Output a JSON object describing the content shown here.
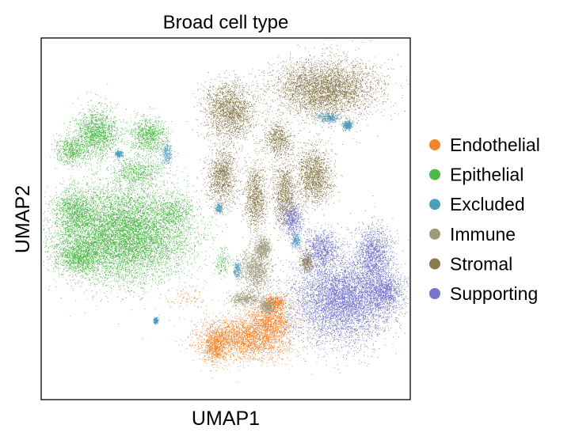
{
  "chart_data": {
    "type": "scatter",
    "title": "Broad cell type",
    "xlabel": "UMAP1",
    "ylabel": "UMAP2",
    "xlim": [
      0,
      100
    ],
    "ylim": [
      0,
      100
    ],
    "ticks": false,
    "grid": false,
    "legend_position": "right",
    "series": [
      {
        "name": "Endothelial",
        "color": "#f0852d",
        "regions": [
          {
            "cx": 55,
            "cy": 17,
            "rx": 12,
            "ry": 6,
            "density": 1.8
          },
          {
            "cx": 62,
            "cy": 22,
            "rx": 6,
            "ry": 6,
            "density": 1.5
          },
          {
            "cx": 47,
            "cy": 15,
            "rx": 3,
            "ry": 5,
            "density": 1.2
          },
          {
            "cx": 40,
            "cy": 28,
            "rx": 6,
            "ry": 3,
            "density": 0.15
          },
          {
            "cx": 63,
            "cy": 27,
            "rx": 3,
            "ry": 2,
            "density": 1.0
          }
        ]
      },
      {
        "name": "Epithelial",
        "color": "#4cb847",
        "regions": [
          {
            "cx": 22,
            "cy": 46,
            "rx": 18,
            "ry": 13,
            "density": 2.2
          },
          {
            "cx": 10,
            "cy": 40,
            "rx": 6,
            "ry": 5,
            "density": 1.4
          },
          {
            "cx": 9,
            "cy": 52,
            "rx": 5,
            "ry": 6,
            "density": 1.2
          },
          {
            "cx": 15,
            "cy": 74,
            "rx": 6,
            "ry": 7,
            "density": 1.5
          },
          {
            "cx": 29,
            "cy": 73,
            "rx": 5,
            "ry": 5,
            "density": 1.2
          },
          {
            "cx": 8,
            "cy": 69,
            "rx": 4,
            "ry": 4,
            "density": 1.0
          },
          {
            "cx": 36,
            "cy": 52,
            "rx": 5,
            "ry": 5,
            "density": 0.6
          },
          {
            "cx": 49,
            "cy": 38,
            "rx": 2,
            "ry": 4,
            "density": 0.3
          },
          {
            "cx": 26,
            "cy": 63,
            "rx": 7,
            "ry": 4,
            "density": 0.8
          }
        ]
      },
      {
        "name": "Excluded",
        "color": "#4e9ebe",
        "regions": [
          {
            "cx": 78,
            "cy": 78,
            "rx": 3,
            "ry": 1.5,
            "density": 0.8
          },
          {
            "cx": 83,
            "cy": 76,
            "rx": 1.2,
            "ry": 1.2,
            "density": 1.0
          },
          {
            "cx": 34,
            "cy": 68,
            "rx": 1.5,
            "ry": 3,
            "density": 0.6
          },
          {
            "cx": 21,
            "cy": 68,
            "rx": 1,
            "ry": 1,
            "density": 0.6
          },
          {
            "cx": 53,
            "cy": 36,
            "rx": 1.2,
            "ry": 2.5,
            "density": 0.5
          },
          {
            "cx": 69,
            "cy": 44,
            "rx": 1.2,
            "ry": 2,
            "density": 0.5
          },
          {
            "cx": 31,
            "cy": 22,
            "rx": 0.6,
            "ry": 0.8,
            "density": 0.6
          },
          {
            "cx": 48,
            "cy": 53,
            "rx": 1,
            "ry": 1.5,
            "density": 0.4
          }
        ]
      },
      {
        "name": "Immune",
        "color": "#9b9a7a",
        "regions": [
          {
            "cx": 58,
            "cy": 36,
            "rx": 4,
            "ry": 6,
            "density": 1.6
          },
          {
            "cx": 55,
            "cy": 28,
            "rx": 4,
            "ry": 2,
            "density": 1.0
          },
          {
            "cx": 60,
            "cy": 42,
            "rx": 2,
            "ry": 3,
            "density": 1.2
          },
          {
            "cx": 61,
            "cy": 26,
            "rx": 2,
            "ry": 2,
            "density": 0.8
          }
        ]
      },
      {
        "name": "Stromal",
        "color": "#8b7a4e",
        "regions": [
          {
            "cx": 77,
            "cy": 86,
            "rx": 14,
            "ry": 8,
            "density": 2.0
          },
          {
            "cx": 51,
            "cy": 80,
            "rx": 7,
            "ry": 8,
            "density": 1.6
          },
          {
            "cx": 49,
            "cy": 62,
            "rx": 4,
            "ry": 8,
            "density": 1.4
          },
          {
            "cx": 58,
            "cy": 56,
            "rx": 3,
            "ry": 9,
            "density": 1.4
          },
          {
            "cx": 66,
            "cy": 57,
            "rx": 3,
            "ry": 9,
            "density": 1.4
          },
          {
            "cx": 74,
            "cy": 62,
            "rx": 5,
            "ry": 8,
            "density": 1.6
          },
          {
            "cx": 64,
            "cy": 72,
            "rx": 4,
            "ry": 5,
            "density": 1.0
          },
          {
            "cx": 72,
            "cy": 38,
            "rx": 2,
            "ry": 3,
            "density": 0.8
          }
        ]
      },
      {
        "name": "Supporting",
        "color": "#7575c9",
        "regions": [
          {
            "cx": 82,
            "cy": 28,
            "rx": 14,
            "ry": 12,
            "density": 2.0
          },
          {
            "cx": 90,
            "cy": 40,
            "rx": 5,
            "ry": 8,
            "density": 1.4
          },
          {
            "cx": 68,
            "cy": 50,
            "rx": 3,
            "ry": 5,
            "density": 1.0
          },
          {
            "cx": 93,
            "cy": 30,
            "rx": 5,
            "ry": 5,
            "density": 1.2
          },
          {
            "cx": 76,
            "cy": 42,
            "rx": 5,
            "ry": 5,
            "density": 1.2
          }
        ]
      }
    ]
  }
}
